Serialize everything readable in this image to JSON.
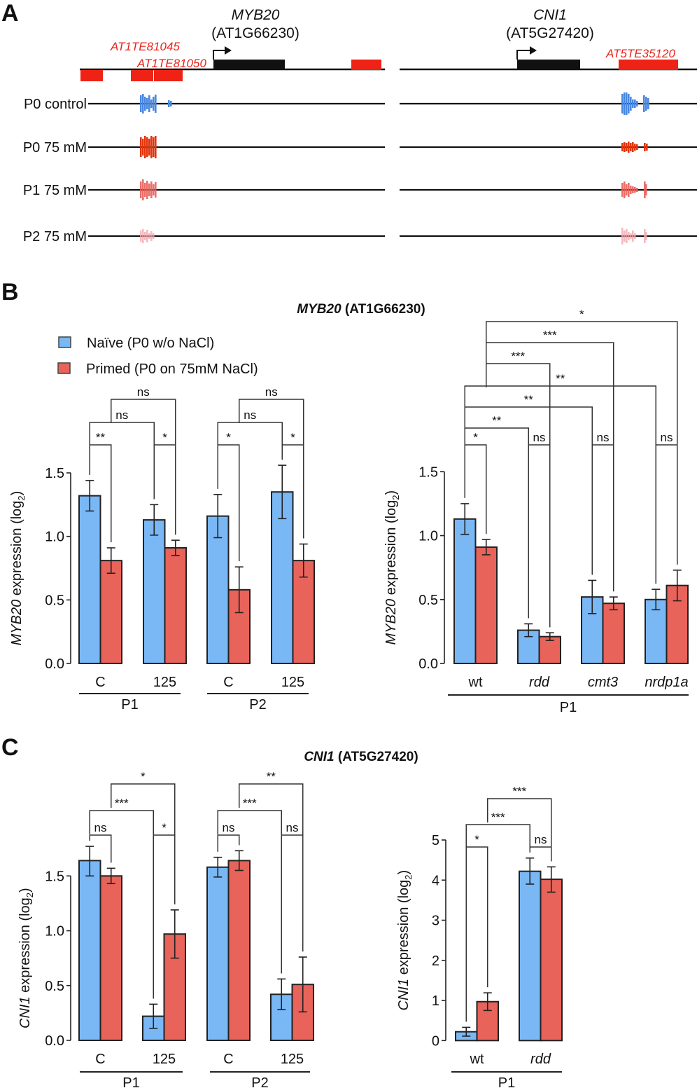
{
  "colors": {
    "naive": "#7ab7f5",
    "primed": "#e8635a",
    "te": "#ee2316",
    "gene": "#111111",
    "p0_control": "#4a88e0",
    "p0_75": "#e0360e",
    "p1_75": "#e9605a",
    "p2_75": "#f2aab0"
  },
  "panel_a": {
    "letter": "A",
    "genes": [
      {
        "name": "MYB20",
        "id": "(AT1G66230)"
      },
      {
        "name": "CNI1",
        "id": "(AT5G27420)"
      }
    ],
    "te_labels": [
      "AT1TE81045",
      "AT1TE81050",
      "AT5TE35120"
    ],
    "tracks": [
      "P0 control",
      "P0 75 mM",
      "P1 75 mM",
      "P2 75 mM"
    ]
  },
  "panel_b": {
    "letter": "B",
    "title_gene": "MYB20",
    "title_id": " (AT1G66230)"
  },
  "panel_c": {
    "letter": "C",
    "title_gene": "CNI1",
    "title_id": " (AT5G27420)"
  },
  "legend": [
    {
      "label": "Naïve (P0 w/o NaCl)",
      "series": "naive"
    },
    {
      "label": "Primed (P0 on 75mM NaCl)",
      "series": "primed"
    }
  ],
  "chart_data": [
    {
      "id": "b_left",
      "type": "bar",
      "ylabel_gene": "MYB20",
      "ylabel_rest": " expression (log",
      "ylabel_sub": "2",
      "ylim": [
        0,
        1.5
      ],
      "yticks": [
        "0.0",
        "0.5",
        "1.0",
        "1.5"
      ],
      "ytick_values": [
        0,
        0.5,
        1.0,
        1.5
      ],
      "categories": [
        "C",
        "125",
        "C",
        "125"
      ],
      "category_italic": [
        false,
        false,
        false,
        false
      ],
      "groups": [
        {
          "label": "P1",
          "span": [
            0,
            1
          ]
        },
        {
          "label": "P2",
          "span": [
            2,
            3
          ]
        }
      ],
      "series": [
        {
          "name": "Naïve (P0 w/o NaCl)",
          "values": [
            1.32,
            1.13,
            1.16,
            1.35
          ],
          "err_hi": [
            1.44,
            1.25,
            1.33,
            1.56
          ],
          "err_lo": [
            1.2,
            1.01,
            0.99,
            1.14
          ]
        },
        {
          "name": "Primed (P0 on 75mM NaCl)",
          "values": [
            0.81,
            0.91,
            0.58,
            0.81
          ],
          "err_hi": [
            0.91,
            0.97,
            0.76,
            0.94
          ],
          "err_lo": [
            0.71,
            0.85,
            0.4,
            0.68
          ]
        }
      ],
      "significance": [
        {
          "label": "**",
          "from": "0.naive",
          "to": "0.primed",
          "level": 0
        },
        {
          "label": "*",
          "from": "1.naive",
          "to": "1.primed",
          "level": 0
        },
        {
          "label": "*",
          "from": "2.naive",
          "to": "2.primed",
          "level": 0
        },
        {
          "label": "*",
          "from": "3.naive",
          "to": "3.primed",
          "level": 0
        },
        {
          "label": "ns",
          "from": "0.naive",
          "to": "1.naive",
          "level": 1
        },
        {
          "label": "ns",
          "from": "0.primed",
          "to": "1.primed",
          "level": 2
        },
        {
          "label": "ns",
          "from": "2.naive",
          "to": "3.naive",
          "level": 1
        },
        {
          "label": "ns",
          "from": "2.primed",
          "to": "3.primed",
          "level": 2
        }
      ]
    },
    {
      "id": "b_right",
      "type": "bar",
      "ylabel_gene": "MYB20",
      "ylabel_rest": " expression (log",
      "ylabel_sub": "2",
      "ylim": [
        0,
        1.5
      ],
      "yticks": [
        "0.0",
        "0.5",
        "1.0",
        "1.5"
      ],
      "ytick_values": [
        0,
        0.5,
        1.0,
        1.5
      ],
      "categories": [
        "wt",
        "rdd",
        "cmt3",
        "nrdp1a"
      ],
      "category_italic": [
        false,
        true,
        true,
        true
      ],
      "groups": [
        {
          "label": "P1",
          "span": [
            0,
            3
          ]
        }
      ],
      "series": [
        {
          "name": "Naïve (P0 w/o NaCl)",
          "values": [
            1.13,
            0.26,
            0.52,
            0.5
          ],
          "err_hi": [
            1.25,
            0.31,
            0.65,
            0.58
          ],
          "err_lo": [
            1.01,
            0.21,
            0.39,
            0.42
          ]
        },
        {
          "name": "Primed (P0 on 75mM NaCl)",
          "values": [
            0.91,
            0.21,
            0.47,
            0.61
          ],
          "err_hi": [
            0.97,
            0.24,
            0.52,
            0.73
          ],
          "err_lo": [
            0.85,
            0.18,
            0.42,
            0.49
          ]
        }
      ],
      "significance": [
        {
          "label": "*",
          "from": "0.naive",
          "to": "0.primed",
          "level": 0
        },
        {
          "label": "ns",
          "from": "1.naive",
          "to": "1.primed",
          "level": 0
        },
        {
          "label": "ns",
          "from": "2.naive",
          "to": "2.primed",
          "level": 0
        },
        {
          "label": "ns",
          "from": "3.naive",
          "to": "3.primed",
          "level": 0
        },
        {
          "label": "**",
          "from": "0.naive",
          "to": "1.naive",
          "level": 1
        },
        {
          "label": "**",
          "from": "0.naive",
          "to": "2.naive",
          "level": 2
        },
        {
          "label": "**",
          "from": "0.naive",
          "to": "3.naive",
          "level": 3
        },
        {
          "label": "***",
          "from": "0.primed",
          "to": "1.primed",
          "level": 4
        },
        {
          "label": "***",
          "from": "0.primed",
          "to": "2.primed",
          "level": 5
        },
        {
          "label": "*",
          "from": "0.primed",
          "to": "3.primed",
          "level": 6
        }
      ]
    },
    {
      "id": "c_left",
      "type": "bar",
      "ylabel_gene": "CNI1",
      "ylabel_rest": " expression (log",
      "ylabel_sub": "2",
      "ylim": [
        0,
        1.5
      ],
      "yticks": [
        "0.0",
        "0.5",
        "1.0",
        "1.5"
      ],
      "ytick_values": [
        0,
        0.5,
        1.0,
        1.5
      ],
      "categories": [
        "C",
        "125",
        "C",
        "125"
      ],
      "category_italic": [
        false,
        false,
        false,
        false
      ],
      "groups": [
        {
          "label": "P1",
          "span": [
            0,
            1
          ]
        },
        {
          "label": "P2",
          "span": [
            2,
            3
          ]
        }
      ],
      "series": [
        {
          "name": "Naïve (P0 w/o NaCl)",
          "values": [
            1.64,
            0.22,
            1.58,
            0.42
          ],
          "err_hi": [
            1.77,
            0.33,
            1.67,
            0.56
          ],
          "err_lo": [
            1.5,
            0.11,
            1.49,
            0.28
          ]
        },
        {
          "name": "Primed (P0 on 75mM NaCl)",
          "values": [
            1.5,
            0.97,
            1.64,
            0.51
          ],
          "err_hi": [
            1.57,
            1.19,
            1.73,
            0.76
          ],
          "err_lo": [
            1.43,
            0.75,
            1.55,
            0.26
          ]
        }
      ],
      "significance": [
        {
          "label": "ns",
          "from": "0.naive",
          "to": "0.primed",
          "level": 0
        },
        {
          "label": "*",
          "from": "1.naive",
          "to": "1.primed",
          "level": 0
        },
        {
          "label": "ns",
          "from": "2.naive",
          "to": "2.primed",
          "level": 0
        },
        {
          "label": "ns",
          "from": "3.naive",
          "to": "3.primed",
          "level": 0
        },
        {
          "label": "***",
          "from": "0.naive",
          "to": "1.naive",
          "level": 1
        },
        {
          "label": "*",
          "from": "0.primed",
          "to": "1.primed",
          "level": 2
        },
        {
          "label": "***",
          "from": "2.naive",
          "to": "3.naive",
          "level": 1
        },
        {
          "label": "**",
          "from": "2.primed",
          "to": "3.primed",
          "level": 2
        }
      ]
    },
    {
      "id": "c_right",
      "type": "bar",
      "ylabel_gene": "CNI1",
      "ylabel_rest": " expression (log",
      "ylabel_sub": "2",
      "ylim": [
        0,
        5
      ],
      "yticks": [
        "0",
        "1",
        "2",
        "3",
        "4",
        "5"
      ],
      "ytick_values": [
        0,
        1,
        2,
        3,
        4,
        5
      ],
      "categories": [
        "wt",
        "rdd"
      ],
      "category_italic": [
        false,
        true
      ],
      "groups": [
        {
          "label": "P1",
          "span": [
            0,
            1
          ]
        }
      ],
      "series": [
        {
          "name": "Naïve (P0 w/o NaCl)",
          "values": [
            0.22,
            4.22
          ],
          "err_hi": [
            0.33,
            4.55
          ],
          "err_lo": [
            0.11,
            3.9
          ]
        },
        {
          "name": "Primed (P0 on 75mM NaCl)",
          "values": [
            0.97,
            4.02
          ],
          "err_hi": [
            1.19,
            4.33
          ],
          "err_lo": [
            0.75,
            3.7
          ]
        }
      ],
      "significance": [
        {
          "label": "*",
          "from": "0.naive",
          "to": "0.primed",
          "level": 0
        },
        {
          "label": "ns",
          "from": "1.naive",
          "to": "1.primed",
          "level": 0
        },
        {
          "label": "***",
          "from": "0.naive",
          "to": "1.naive",
          "level": 1
        },
        {
          "label": "***",
          "from": "0.primed",
          "to": "1.primed",
          "level": 2
        }
      ]
    }
  ]
}
